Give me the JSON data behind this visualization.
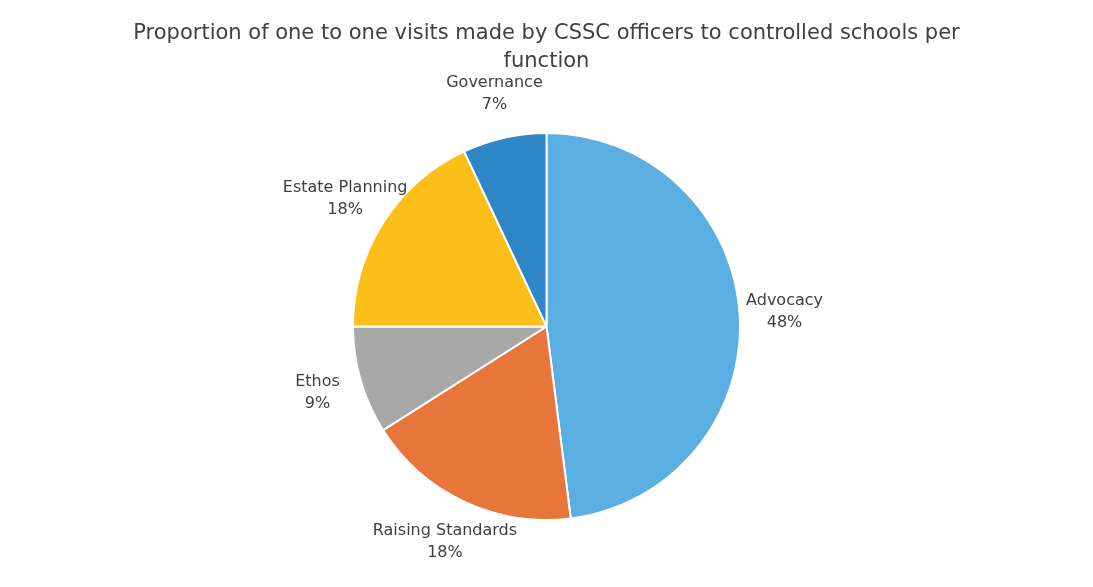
{
  "chart_data": {
    "type": "pie",
    "title": "Proportion of one to one visits made by CSSC officers to controlled schools per function",
    "categories": [
      "Advocacy",
      "Raising Standards",
      "Ethos",
      "Estate Planning",
      "Governance"
    ],
    "values": [
      48,
      18,
      9,
      18,
      7
    ],
    "value_labels": [
      "48%",
      "18%",
      "9%",
      "18%",
      "7%"
    ],
    "colors": [
      "#5aaee2",
      "#e8763a",
      "#a8a8a8",
      "#fcbf1a",
      "#2f86c6"
    ],
    "legend": false
  }
}
